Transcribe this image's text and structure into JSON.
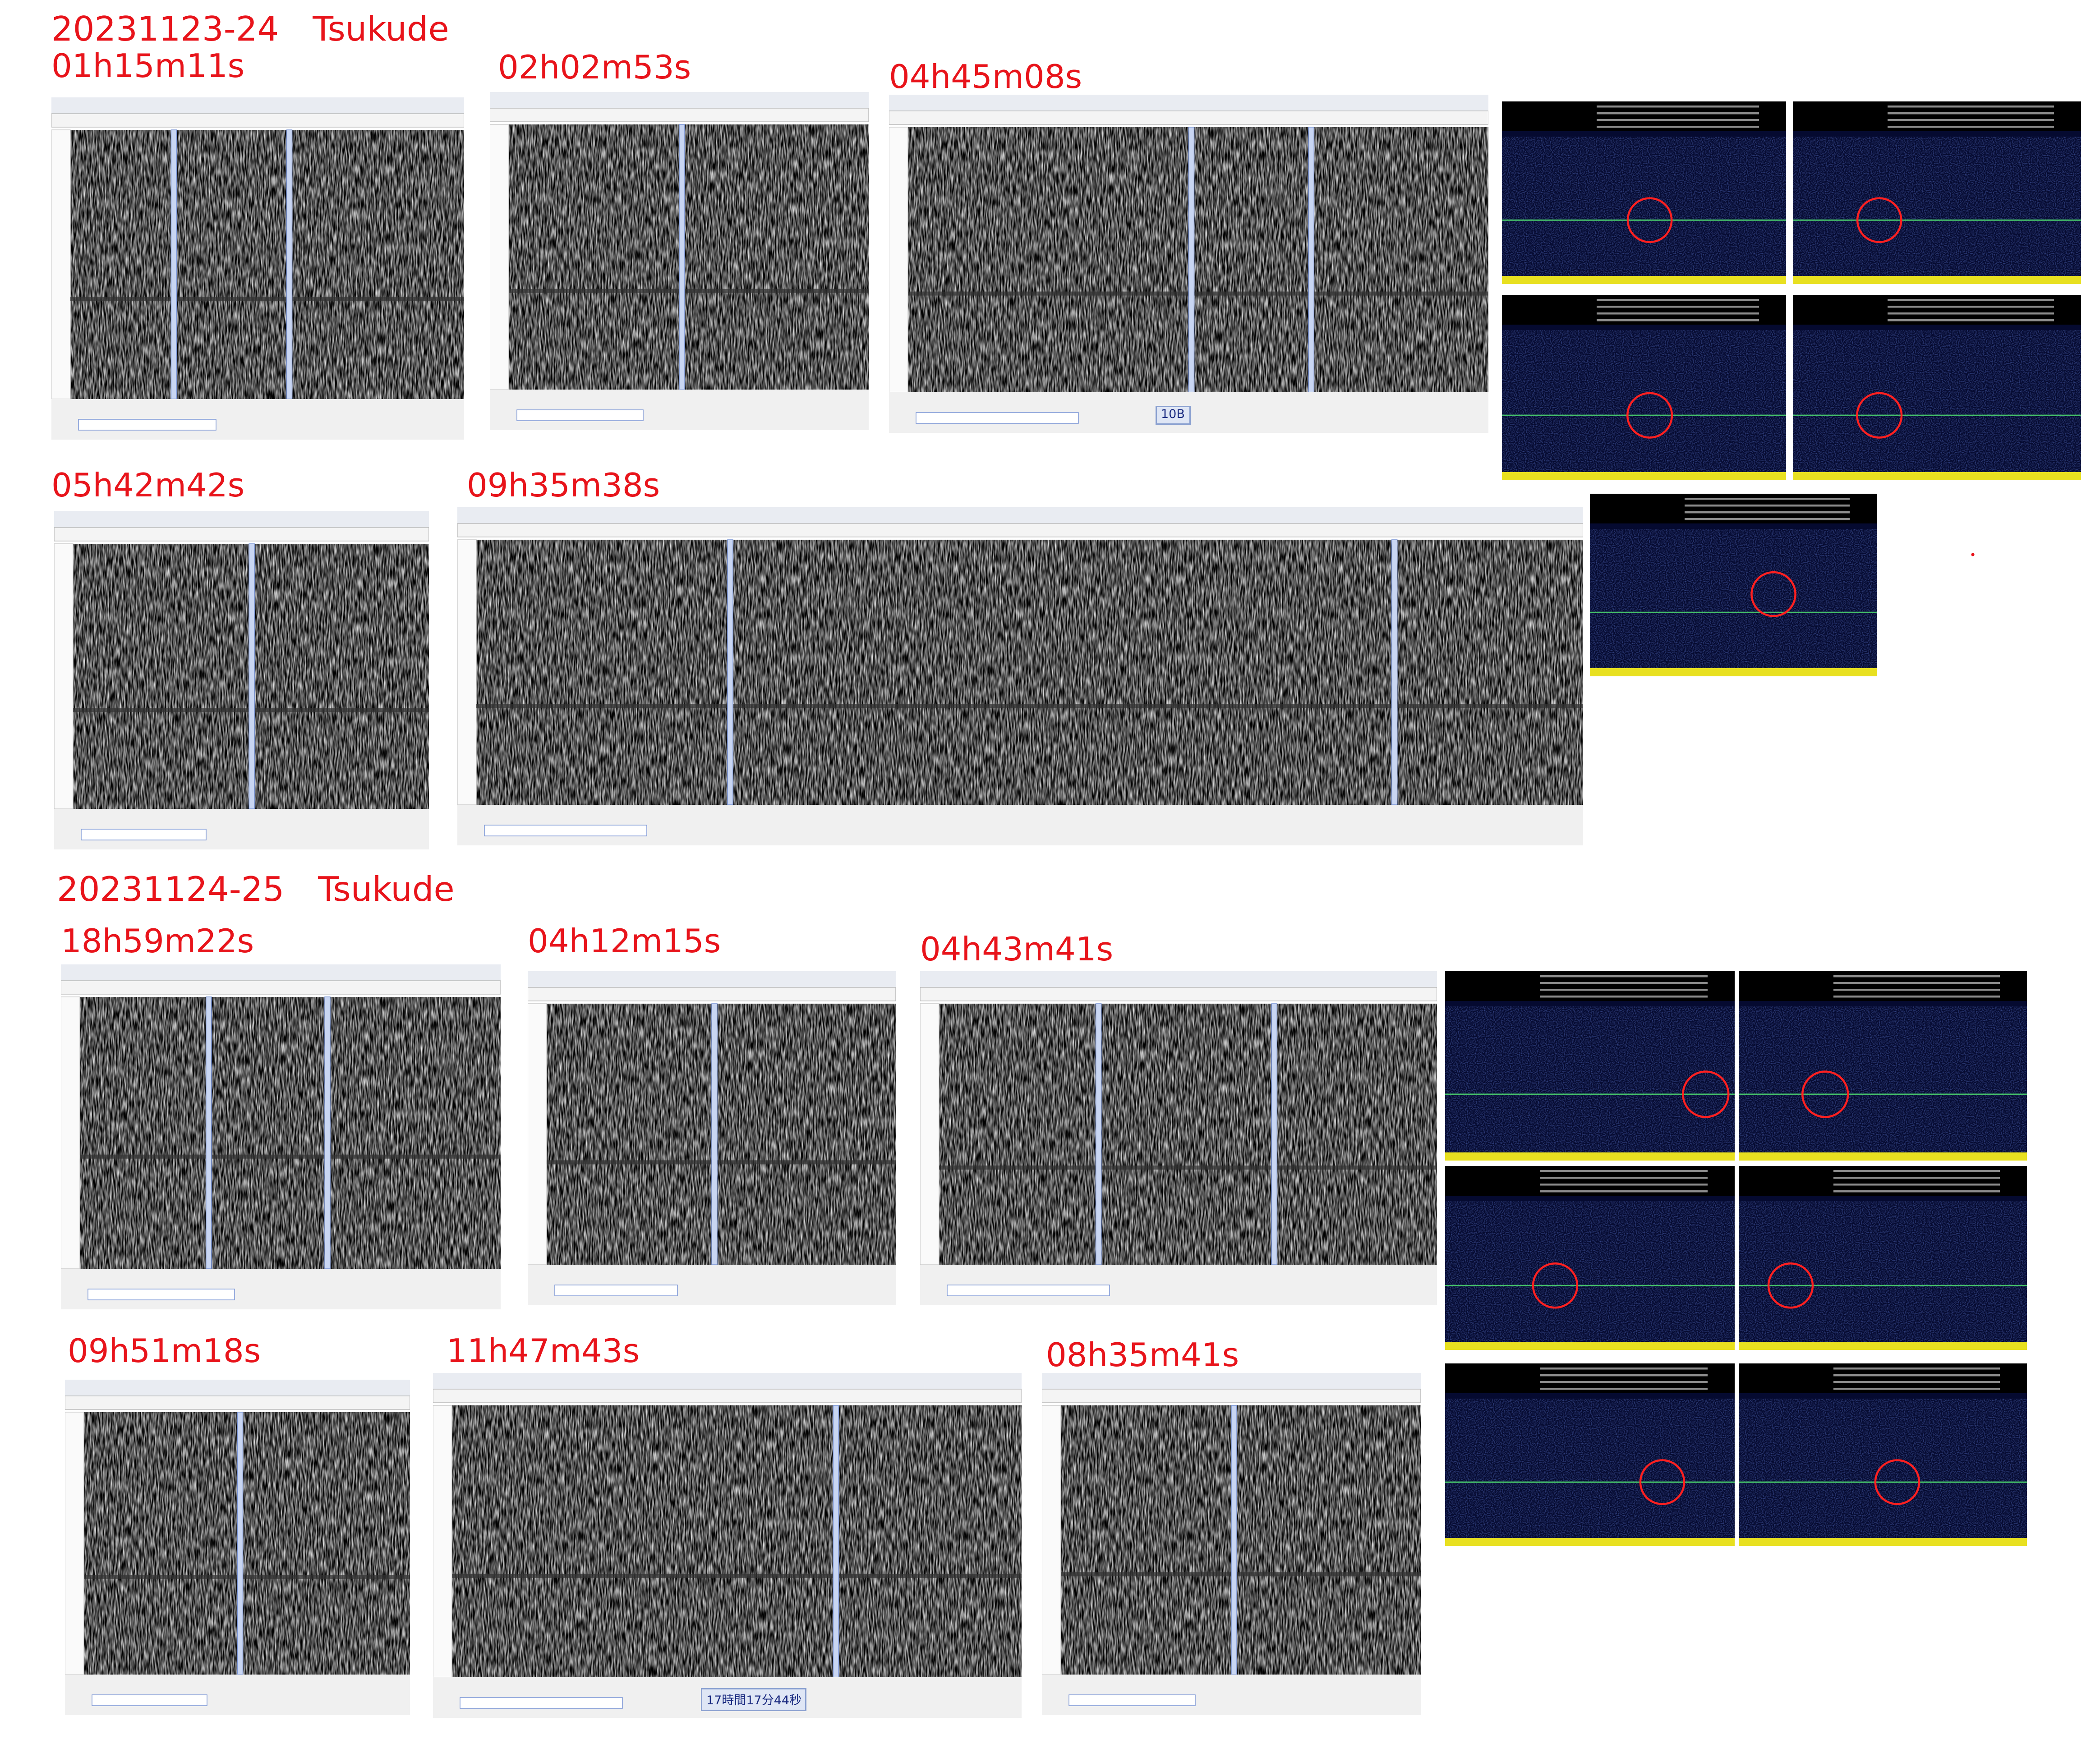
{
  "sections": [
    {
      "title": "20231123-24　Tsukude",
      "panels": [
        {
          "label": "01h15m11s"
        },
        {
          "label": "02h02m53s"
        },
        {
          "label": "04h45m08s"
        },
        {
          "label": "05h42m42s"
        },
        {
          "label": "09h35m38s"
        }
      ]
    },
    {
      "title": "20231124-25　Tsukude",
      "panels": [
        {
          "label": "18h59m22s"
        },
        {
          "label": "04h12m15s"
        },
        {
          "label": "04h43m41s"
        },
        {
          "label": "09h51m18s"
        },
        {
          "label": "11h47m43s"
        },
        {
          "label": "08h35m41s"
        }
      ]
    }
  ],
  "notes": [
    "10B",
    "17時間17分44秒"
  ]
}
